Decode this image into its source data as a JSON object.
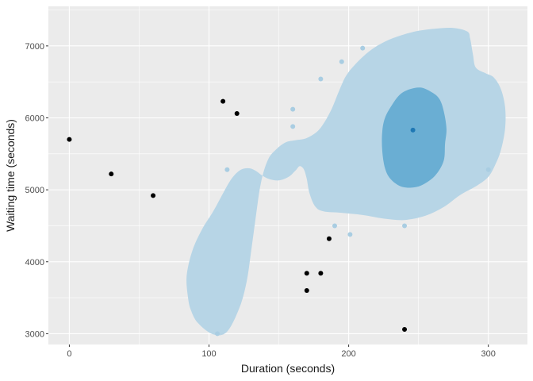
{
  "chart_data": {
    "type": "scatter",
    "xlabel": "Duration (seconds)",
    "ylabel": "Waiting time (seconds)",
    "xlim": [
      -15,
      328
    ],
    "ylim": [
      2850,
      7550
    ],
    "x_ticks": [
      0,
      100,
      200,
      300
    ],
    "y_ticks": [
      3000,
      4000,
      5000,
      6000,
      7000
    ],
    "x_tick_labels": [
      "0",
      "100",
      "200",
      "300"
    ],
    "y_tick_labels": [
      "3000",
      "4000",
      "5000",
      "6000",
      "7000"
    ],
    "grid": true,
    "legend": "none",
    "colors": {
      "panel": "#ebebeb",
      "grid": "#ffffff",
      "density_outer": "#b7d5e6",
      "density_inner": "#6aaed3",
      "points_outside": "#000000",
      "points_inside": "#a9cde2",
      "point_center": "#1f78b4"
    },
    "density_regions": [
      {
        "level": "outer",
        "path": [
          [
            85,
            3500
          ],
          [
            84,
            3800
          ],
          [
            88,
            4150
          ],
          [
            95,
            4450
          ],
          [
            103,
            4700
          ],
          [
            110,
            4950
          ],
          [
            116,
            5150
          ],
          [
            122,
            5270
          ],
          [
            128,
            5300
          ],
          [
            133,
            5270
          ],
          [
            138,
            5200
          ],
          [
            143,
            5150
          ],
          [
            150,
            5130
          ],
          [
            157,
            5180
          ],
          [
            162,
            5270
          ],
          [
            165,
            5330
          ],
          [
            168,
            5280
          ],
          [
            170,
            5150
          ],
          [
            172,
            4950
          ],
          [
            176,
            4770
          ],
          [
            182,
            4700
          ],
          [
            195,
            4680
          ],
          [
            210,
            4650
          ],
          [
            225,
            4600
          ],
          [
            240,
            4580
          ],
          [
            255,
            4640
          ],
          [
            268,
            4760
          ],
          [
            280,
            4930
          ],
          [
            292,
            5060
          ],
          [
            300,
            5180
          ],
          [
            305,
            5350
          ],
          [
            309,
            5550
          ],
          [
            312,
            5850
          ],
          [
            312,
            6150
          ],
          [
            309,
            6400
          ],
          [
            304,
            6560
          ],
          [
            298,
            6620
          ],
          [
            291,
            6700
          ],
          [
            289,
            6880
          ],
          [
            287,
            7100
          ],
          [
            285,
            7200
          ],
          [
            275,
            7250
          ],
          [
            262,
            7240
          ],
          [
            250,
            7210
          ],
          [
            238,
            7150
          ],
          [
            226,
            7060
          ],
          [
            215,
            6930
          ],
          [
            205,
            6750
          ],
          [
            198,
            6580
          ],
          [
            193,
            6370
          ],
          [
            187,
            6090
          ],
          [
            179,
            5840
          ],
          [
            170,
            5720
          ],
          [
            162,
            5690
          ],
          [
            155,
            5660
          ],
          [
            148,
            5560
          ],
          [
            142,
            5410
          ],
          [
            137,
            5080
          ],
          [
            133,
            4550
          ],
          [
            130,
            4120
          ],
          [
            127,
            3730
          ],
          [
            122,
            3370
          ],
          [
            113,
            3030
          ],
          [
            103,
            2990
          ],
          [
            92,
            3150
          ],
          [
            87,
            3330
          ]
        ]
      },
      {
        "level": "inner",
        "path": [
          [
            226,
            5300
          ],
          [
            230,
            5150
          ],
          [
            237,
            5050
          ],
          [
            245,
            5030
          ],
          [
            253,
            5070
          ],
          [
            262,
            5200
          ],
          [
            268,
            5400
          ],
          [
            269,
            5640
          ],
          [
            270,
            5850
          ],
          [
            268,
            6100
          ],
          [
            265,
            6260
          ],
          [
            260,
            6350
          ],
          [
            252,
            6420
          ],
          [
            244,
            6400
          ],
          [
            237,
            6330
          ],
          [
            231,
            6180
          ],
          [
            226,
            6000
          ],
          [
            224,
            5800
          ],
          [
            224,
            5550
          ]
        ]
      }
    ],
    "points_outside": [
      {
        "x": 0,
        "y": 5700
      },
      {
        "x": 30,
        "y": 5220
      },
      {
        "x": 60,
        "y": 4920
      },
      {
        "x": 110,
        "y": 6230
      },
      {
        "x": 120,
        "y": 6060
      },
      {
        "x": 170,
        "y": 3840
      },
      {
        "x": 170,
        "y": 3600
      },
      {
        "x": 180,
        "y": 3840
      },
      {
        "x": 186,
        "y": 4320
      },
      {
        "x": 240,
        "y": 3060
      }
    ],
    "points_inside": [
      {
        "x": 106,
        "y": 3000
      },
      {
        "x": 113,
        "y": 5280
      },
      {
        "x": 160,
        "y": 6120
      },
      {
        "x": 160,
        "y": 5880
      },
      {
        "x": 180,
        "y": 6540
      },
      {
        "x": 190,
        "y": 4500
      },
      {
        "x": 195,
        "y": 6780
      },
      {
        "x": 201,
        "y": 4380
      },
      {
        "x": 210,
        "y": 6970
      },
      {
        "x": 240,
        "y": 4500
      },
      {
        "x": 300,
        "y": 5280
      }
    ],
    "points_center": [
      {
        "x": 246,
        "y": 5830
      }
    ]
  }
}
